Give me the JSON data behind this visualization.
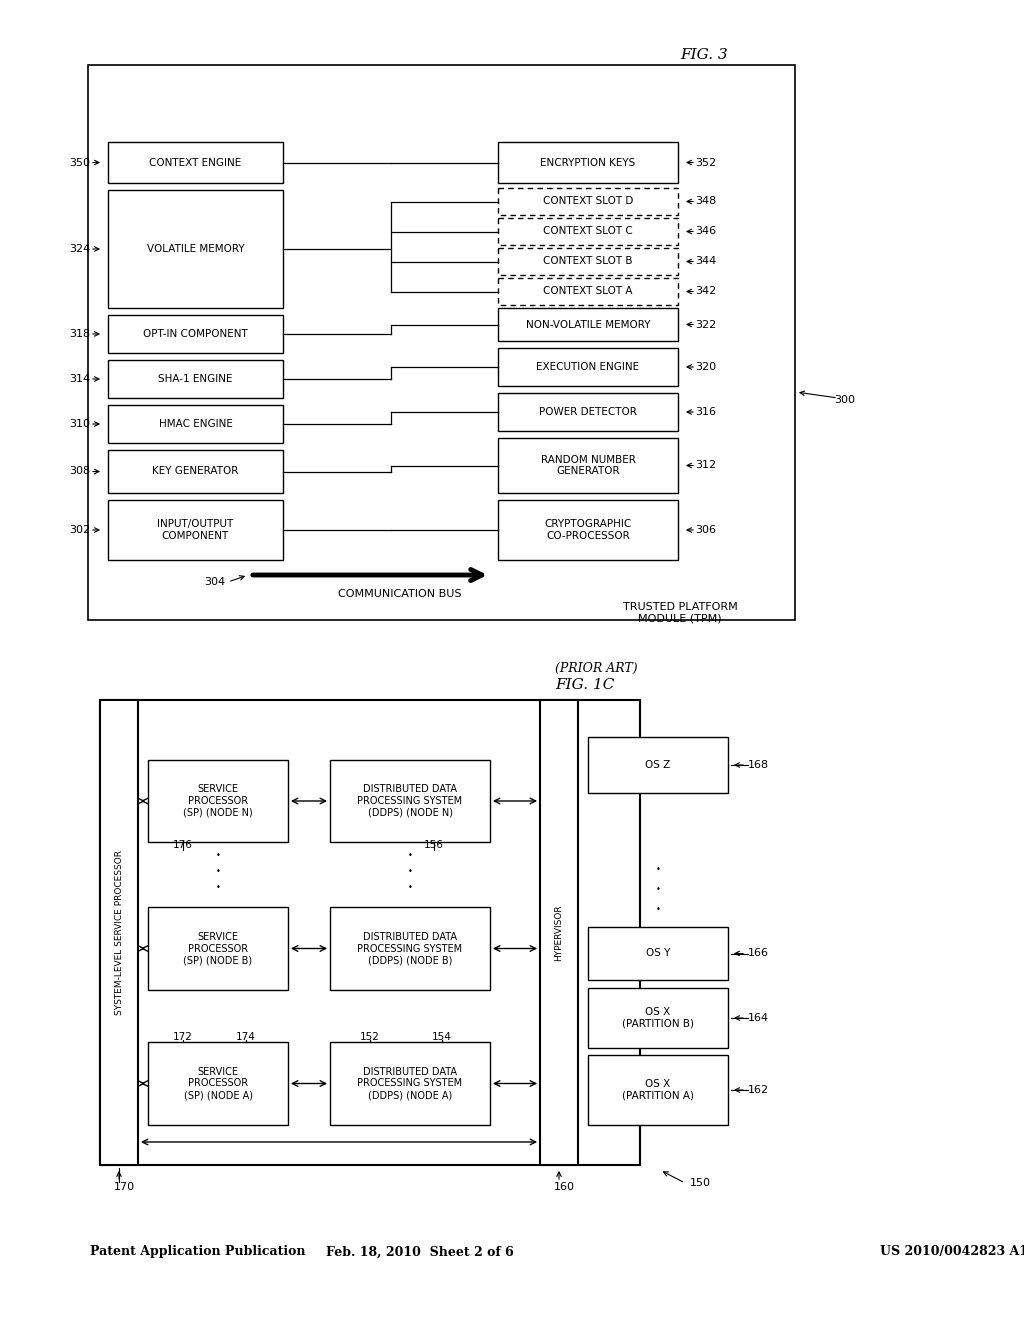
{
  "bg_color": "#ffffff",
  "header_left": "Patent Application Publication",
  "header_mid": "Feb. 18, 2010  Sheet 2 of 6",
  "header_right": "US 2010/0042823 A1",
  "fig1c_label": "FIG. 1C",
  "fig1c_sub": "(PRIOR ART)",
  "fig3_label": "FIG. 3"
}
